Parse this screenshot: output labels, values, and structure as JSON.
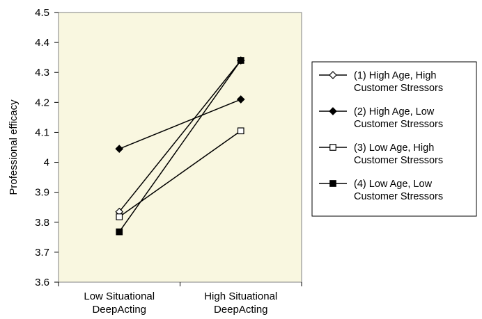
{
  "chart_data": {
    "type": "line",
    "title": "",
    "xlabel": "",
    "ylabel": "Professional efficacy",
    "categories": [
      "Low Situational DeepActing",
      "High Situational DeepActing"
    ],
    "category_lines": [
      [
        "Low Situational",
        "DeepActing"
      ],
      [
        "High Situational",
        "DeepActing"
      ]
    ],
    "ylim": [
      3.6,
      4.5
    ],
    "yticks": [
      3.6,
      3.7,
      3.8,
      3.9,
      4,
      4.1,
      4.2,
      4.3,
      4.4,
      4.5
    ],
    "ytick_labels": [
      "3.6",
      "3.7",
      "3.8",
      "3.9",
      "4",
      "4.1",
      "4.2",
      "4.3",
      "4.4",
      "4.5"
    ],
    "grid": false,
    "legend_position": "right",
    "plot_background": "#f9f7e0",
    "series": [
      {
        "name": "(1) High Age, High Customer Stressors",
        "legend_lines": [
          "(1) High Age, High",
          "Customer Stressors"
        ],
        "marker": "diamond-open",
        "values": [
          3.835,
          4.34
        ]
      },
      {
        "name": "(2) High Age, Low Customer Stressors",
        "legend_lines": [
          "(2) High Age, Low",
          "Customer Stressors"
        ],
        "marker": "diamond-filled",
        "values": [
          4.045,
          4.21
        ]
      },
      {
        "name": "(3) Low Age, High Customer Stressors",
        "legend_lines": [
          "(3) Low Age, High",
          "Customer Stressors"
        ],
        "marker": "square-open",
        "values": [
          3.818,
          4.105
        ]
      },
      {
        "name": "(4) Low Age, Low Customer Stressors",
        "legend_lines": [
          "(4) Low Age, Low",
          "Customer Stressors"
        ],
        "marker": "square-filled",
        "values": [
          3.768,
          4.34
        ]
      }
    ]
  }
}
